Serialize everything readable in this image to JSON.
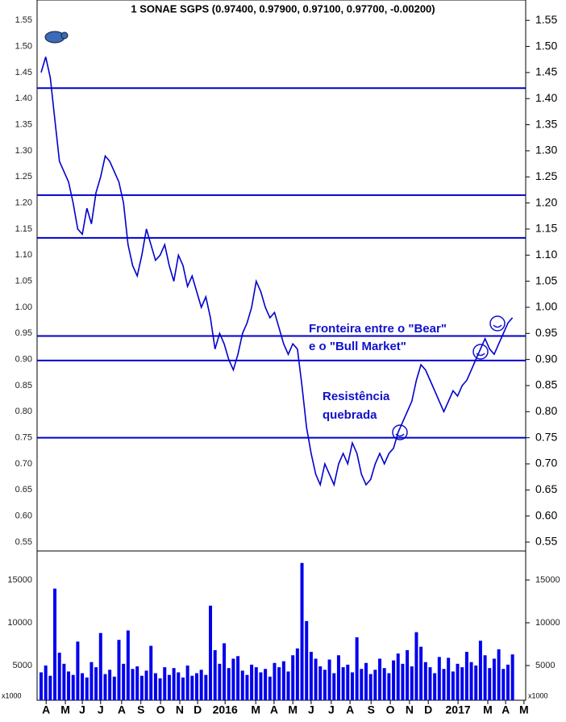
{
  "chart_data": {
    "type": "line",
    "title": "1 SONAE SGPS (0.97400, 0.97900, 0.97100, 0.97700, -0.00200)",
    "color": "#0000cc",
    "xlim": [
      0,
      105
    ],
    "xticks": [
      {
        "value": 1.1,
        "label": "A"
      },
      {
        "value": 5.3,
        "label": "M"
      },
      {
        "value": 9.0,
        "label": "J"
      },
      {
        "value": 13.0,
        "label": "J"
      },
      {
        "value": 17.6,
        "label": "A"
      },
      {
        "value": 21.8,
        "label": "S"
      },
      {
        "value": 26.1,
        "label": "O"
      },
      {
        "value": 30.3,
        "label": "N"
      },
      {
        "value": 34.2,
        "label": "D"
      },
      {
        "value": 40.2,
        "label": "2016"
      },
      {
        "value": 46.9,
        "label": "M"
      },
      {
        "value": 50.9,
        "label": "A"
      },
      {
        "value": 55.0,
        "label": "M"
      },
      {
        "value": 59.0,
        "label": "J"
      },
      {
        "value": 63.4,
        "label": "J"
      },
      {
        "value": 67.5,
        "label": "A"
      },
      {
        "value": 72.1,
        "label": "S"
      },
      {
        "value": 76.3,
        "label": "O"
      },
      {
        "value": 80.5,
        "label": "N"
      },
      {
        "value": 84.6,
        "label": "D"
      },
      {
        "value": 91.1,
        "label": "2017"
      },
      {
        "value": 97.6,
        "label": "M"
      },
      {
        "value": 101.5,
        "label": "A"
      },
      {
        "value": 105.5,
        "label": "M"
      }
    ],
    "ylim": [
      0.533,
      1.589
    ],
    "yticks": [
      {
        "value": 0.55,
        "label": "0.55"
      },
      {
        "value": 0.6,
        "label": "0.60"
      },
      {
        "value": 0.65,
        "label": "0.65"
      },
      {
        "value": 0.7,
        "label": "0.70"
      },
      {
        "value": 0.75,
        "label": "0.75"
      },
      {
        "value": 0.8,
        "label": "0.80"
      },
      {
        "value": 0.85,
        "label": "0.85"
      },
      {
        "value": 0.9,
        "label": "0.90"
      },
      {
        "value": 0.95,
        "label": "0.95"
      },
      {
        "value": 1.0,
        "label": "1.00"
      },
      {
        "value": 1.05,
        "label": "1.05"
      },
      {
        "value": 1.1,
        "label": "1.10"
      },
      {
        "value": 1.15,
        "label": "1.15"
      },
      {
        "value": 1.2,
        "label": "1.20"
      },
      {
        "value": 1.25,
        "label": "1.25"
      },
      {
        "value": 1.3,
        "label": "1.30"
      },
      {
        "value": 1.35,
        "label": "1.35"
      },
      {
        "value": 1.4,
        "label": "1.40"
      },
      {
        "value": 1.45,
        "label": "1.45"
      },
      {
        "value": 1.5,
        "label": "1.50"
      },
      {
        "value": 1.55,
        "label": "1.55"
      }
    ],
    "hlines": [
      1.42,
      1.215,
      1.133,
      0.945,
      0.898,
      0.75
    ],
    "values": [
      1.45,
      1.48,
      1.44,
      1.36,
      1.28,
      1.26,
      1.24,
      1.2,
      1.15,
      1.14,
      1.19,
      1.16,
      1.22,
      1.25,
      1.29,
      1.28,
      1.26,
      1.24,
      1.2,
      1.12,
      1.08,
      1.06,
      1.1,
      1.15,
      1.12,
      1.09,
      1.1,
      1.12,
      1.08,
      1.05,
      1.1,
      1.08,
      1.04,
      1.06,
      1.03,
      1.0,
      1.02,
      0.98,
      0.92,
      0.95,
      0.93,
      0.9,
      0.88,
      0.91,
      0.95,
      0.97,
      1.0,
      1.05,
      1.03,
      1.0,
      0.98,
      0.99,
      0.96,
      0.93,
      0.91,
      0.93,
      0.92,
      0.85,
      0.77,
      0.72,
      0.68,
      0.66,
      0.7,
      0.68,
      0.66,
      0.7,
      0.72,
      0.7,
      0.74,
      0.72,
      0.68,
      0.66,
      0.67,
      0.7,
      0.72,
      0.7,
      0.72,
      0.73,
      0.76,
      0.78,
      0.8,
      0.82,
      0.86,
      0.89,
      0.88,
      0.86,
      0.84,
      0.82,
      0.8,
      0.82,
      0.84,
      0.83,
      0.85,
      0.86,
      0.88,
      0.9,
      0.92,
      0.94,
      0.92,
      0.91,
      0.93,
      0.95,
      0.97,
      0.98
    ],
    "volume": {
      "label": "x1000",
      "ylim": [
        940,
        18400
      ],
      "yticks": [
        5000,
        10000,
        15000
      ],
      "values": [
        4200,
        5000,
        3800,
        14000,
        6500,
        5200,
        4300,
        3900,
        7800,
        4100,
        3600,
        5400,
        4800,
        8800,
        4000,
        4500,
        3700,
        8000,
        5200,
        9100,
        4600,
        4900,
        3800,
        4400,
        7300,
        4100,
        3500,
        4800,
        3900,
        4700,
        4200,
        3600,
        5000,
        3800,
        4100,
        4500,
        3900,
        12000,
        6800,
        5200,
        7600,
        4700,
        5800,
        6100,
        4400,
        3900,
        5100,
        4800,
        4200,
        4600,
        3700,
        5300,
        4800,
        5500,
        4300,
        6200,
        7000,
        17000,
        10200,
        6600,
        5800,
        4900,
        4500,
        5700,
        4100,
        6200,
        4800,
        5100,
        4200,
        8300,
        4600,
        5300,
        4000,
        4500,
        5800,
        4700,
        4100,
        5600,
        6400,
        5200,
        6800,
        4900,
        8900,
        7200,
        5400,
        4800,
        4100,
        6000,
        4600,
        5900,
        4300,
        5200,
        4800,
        6600,
        5400,
        5000,
        7900,
        6200,
        4700,
        5800,
        6900,
        4600,
        5100,
        6300
      ]
    },
    "annotations": [
      "Fronteira entre o \"Bear\"",
      "e o \"Bull Market\"",
      "Resistência",
      "quebrada"
    ]
  }
}
